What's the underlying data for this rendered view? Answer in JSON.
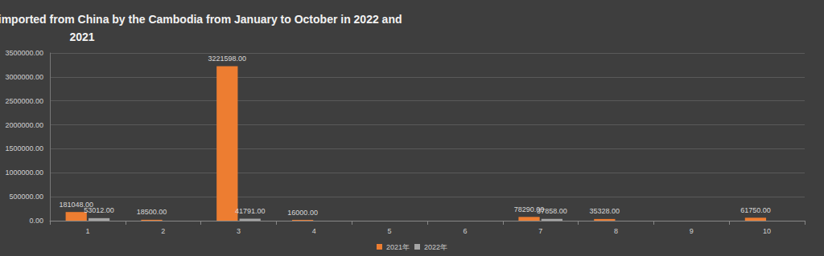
{
  "chart_data": {
    "type": "bar",
    "title": "Comparison of the amount of Gantry cranes imported from China by the Cambodia from January to October in 2022 and 2021",
    "categories": [
      "1",
      "2",
      "3",
      "4",
      "5",
      "6",
      "7",
      "8",
      "9",
      "10"
    ],
    "series": [
      {
        "name": "2021年",
        "color": "#ed7d31",
        "values": [
          181048,
          18500,
          3221598,
          16000,
          null,
          null,
          78290,
          35328,
          null,
          61750
        ],
        "value_labels": [
          "181048.00",
          "18500.00",
          "3221598.00",
          "16000.00",
          null,
          null,
          "78290.00",
          "35328.00",
          null,
          "61750.00"
        ]
      },
      {
        "name": "2022年",
        "color": "#a5a5a5",
        "values": [
          53012,
          null,
          41791,
          null,
          null,
          null,
          37858,
          null,
          null,
          null
        ],
        "value_labels": [
          "53012.00",
          null,
          "41791.00",
          null,
          null,
          null,
          "37858.00",
          null,
          null,
          null
        ]
      }
    ],
    "ylim": [
      0,
      3500000
    ],
    "yticks": [
      {
        "value": 0,
        "label": "0.00"
      },
      {
        "value": 500000,
        "label": "500000.00"
      },
      {
        "value": 1000000,
        "label": "1000000.00"
      },
      {
        "value": 1500000,
        "label": "1500000.00"
      },
      {
        "value": 2000000,
        "label": "2000000.00"
      },
      {
        "value": 2500000,
        "label": "2500000.00"
      },
      {
        "value": 3000000,
        "label": "3000000.00"
      },
      {
        "value": 3500000,
        "label": "3500000.00"
      }
    ],
    "grid": true,
    "legend": "bottom",
    "data_labels": true
  }
}
